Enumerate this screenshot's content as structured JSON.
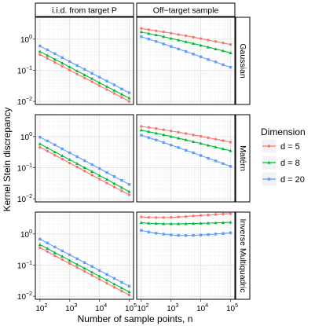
{
  "chart_data": {
    "type": "line",
    "xlabel": "Number of sample points, n",
    "ylabel": "Kernel Stein discrepancy",
    "columns": [
      "i.i.d. from target P",
      "Off−target sample"
    ],
    "rows": [
      "Gaussian",
      "Matérn",
      "Inverse Multiquadric"
    ],
    "x_scale": "log",
    "y_scale": "log",
    "xlim": [
      70,
      140000
    ],
    "ylim": [
      0.008,
      5
    ],
    "x_ticks": [
      {
        "value": 100,
        "label": "10",
        "sup": "2"
      },
      {
        "value": 1000,
        "label": "10",
        "sup": "3"
      },
      {
        "value": 10000,
        "label": "10",
        "sup": "4"
      },
      {
        "value": 100000,
        "label": "10",
        "sup": "5"
      }
    ],
    "y_ticks": [
      {
        "value": 0.01,
        "label": "10",
        "sup": "−2"
      },
      {
        "value": 0.1,
        "label": "10",
        "sup": "−1"
      },
      {
        "value": 1,
        "label": "10",
        "sup": "0"
      }
    ],
    "grid": true,
    "legend": {
      "title": "Dimension",
      "position": "right",
      "entries": [
        {
          "label": "d = 5",
          "color": "#F8766D",
          "marker": "circle"
        },
        {
          "label": "d = 8",
          "color": "#00BA38",
          "marker": "triangle"
        },
        {
          "label": "d = 20",
          "color": "#619CFF",
          "marker": "square"
        }
      ]
    },
    "x": [
      100,
      178,
      316,
      562,
      1000,
      1778,
      3162,
      5623,
      10000,
      17783,
      31623,
      56234,
      100000
    ],
    "panels": [
      {
        "row": "Gaussian",
        "col": "i.i.d. from target P",
        "series": [
          {
            "name": "d = 5",
            "values": [
              0.32,
              0.24,
              0.18,
              0.135,
              0.1,
              0.075,
              0.057,
              0.043,
              0.032,
              0.024,
              0.018,
              0.0135,
              0.01
            ]
          },
          {
            "name": "d = 8",
            "values": [
              0.4,
              0.3,
              0.225,
              0.17,
              0.127,
              0.095,
              0.071,
              0.054,
              0.04,
              0.03,
              0.0225,
              0.017,
              0.0128
            ]
          },
          {
            "name": "d = 20",
            "values": [
              0.6,
              0.45,
              0.34,
              0.255,
              0.19,
              0.142,
              0.107,
              0.08,
              0.06,
              0.045,
              0.034,
              0.025,
              0.019
            ]
          }
        ]
      },
      {
        "row": "Gaussian",
        "col": "Off−target sample",
        "series": [
          {
            "name": "d = 5",
            "values": [
              2.2,
              2.0,
              1.85,
              1.7,
              1.55,
              1.4,
              1.27,
              1.15,
              1.04,
              0.93,
              0.83,
              0.75,
              0.67
            ]
          },
          {
            "name": "d = 8",
            "values": [
              1.7,
              1.5,
              1.35,
              1.2,
              1.05,
              0.93,
              0.82,
              0.72,
              0.63,
              0.55,
              0.48,
              0.42,
              0.36
            ]
          },
          {
            "name": "d = 20",
            "values": [
              1.2,
              1.0,
              0.84,
              0.7,
              0.58,
              0.48,
              0.4,
              0.33,
              0.27,
              0.22,
              0.185,
              0.15,
              0.125
            ]
          }
        ]
      },
      {
        "row": "Matérn",
        "col": "i.i.d. from target P",
        "series": [
          {
            "name": "d = 5",
            "values": [
              0.45,
              0.34,
              0.25,
              0.19,
              0.14,
              0.105,
              0.078,
              0.058,
              0.043,
              0.032,
              0.024,
              0.018,
              0.0135
            ]
          },
          {
            "name": "d = 8",
            "values": [
              0.58,
              0.43,
              0.32,
              0.24,
              0.18,
              0.135,
              0.1,
              0.075,
              0.056,
              0.042,
              0.031,
              0.023,
              0.017
            ]
          },
          {
            "name": "d = 20",
            "values": [
              0.95,
              0.72,
              0.54,
              0.4,
              0.3,
              0.225,
              0.168,
              0.126,
              0.094,
              0.07,
              0.052,
              0.039,
              0.029
            ]
          }
        ]
      },
      {
        "row": "Matérn",
        "col": "Off−target sample",
        "series": [
          {
            "name": "d = 5",
            "values": [
              2.1,
              1.95,
              1.8,
              1.65,
              1.5,
              1.37,
              1.24,
              1.12,
              1.01,
              0.91,
              0.82,
              0.74,
              0.66
            ]
          },
          {
            "name": "d = 8",
            "values": [
              1.6,
              1.42,
              1.27,
              1.13,
              1.0,
              0.88,
              0.78,
              0.68,
              0.6,
              0.52,
              0.46,
              0.4,
              0.35
            ]
          },
          {
            "name": "d = 20",
            "values": [
              1.1,
              0.92,
              0.77,
              0.64,
              0.53,
              0.44,
              0.36,
              0.3,
              0.245,
              0.2,
              0.165,
              0.135,
              0.11
            ]
          }
        ]
      },
      {
        "row": "Inverse Multiquadric",
        "col": "i.i.d. from target P",
        "series": [
          {
            "name": "d = 5",
            "values": [
              0.36,
              0.27,
              0.2,
              0.15,
              0.112,
              0.084,
              0.063,
              0.047,
              0.035,
              0.026,
              0.0195,
              0.0146,
              0.011
            ]
          },
          {
            "name": "d = 8",
            "values": [
              0.45,
              0.34,
              0.25,
              0.19,
              0.14,
              0.105,
              0.079,
              0.059,
              0.044,
              0.033,
              0.0245,
              0.0184,
              0.0138
            ]
          },
          {
            "name": "d = 20",
            "values": [
              0.68,
              0.51,
              0.38,
              0.285,
              0.213,
              0.16,
              0.12,
              0.09,
              0.067,
              0.05,
              0.0375,
              0.028,
              0.021
            ]
          }
        ]
      },
      {
        "row": "Inverse Multiquadric",
        "col": "Off−target sample",
        "series": [
          {
            "name": "d = 5",
            "values": [
              3.5,
              3.4,
              3.35,
              3.35,
              3.4,
              3.5,
              3.6,
              3.75,
              3.9,
              4.05,
              4.2,
              4.35,
              4.5
            ]
          },
          {
            "name": "d = 8",
            "values": [
              2.3,
              2.2,
              2.15,
              2.1,
              2.1,
              2.1,
              2.12,
              2.15,
              2.18,
              2.22,
              2.26,
              2.3,
              2.35
            ]
          },
          {
            "name": "d = 20",
            "values": [
              1.3,
              1.15,
              1.05,
              0.98,
              0.93,
              0.9,
              0.89,
              0.9,
              0.92,
              0.95,
              0.99,
              1.03,
              1.08
            ]
          }
        ]
      }
    ]
  }
}
